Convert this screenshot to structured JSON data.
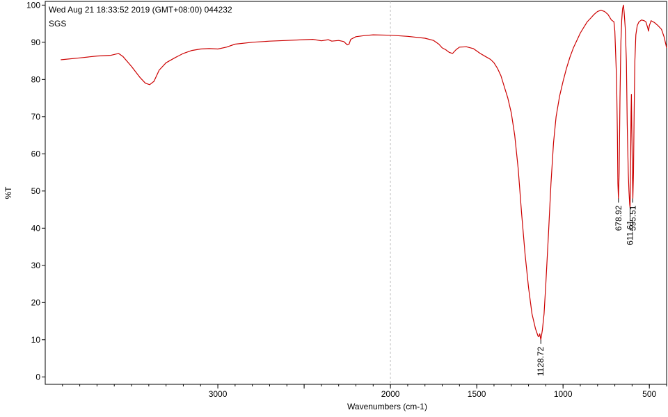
{
  "header": {
    "timestamp_line": "Wed Aug 21 18:33:52 2019 (GMT+08:00)  044232",
    "sample_name": "SGS"
  },
  "colors": {
    "spectrum": "#cc0000",
    "axis": "#000000",
    "cursor": "#c0c0c0",
    "background": "#ffffff"
  },
  "chart_data": {
    "type": "line",
    "title": "",
    "xlabel": "Wavenumbers (cm-1)",
    "ylabel": "%T",
    "xlim": [
      4000,
      400
    ],
    "ylim": [
      -2,
      101
    ],
    "x_reversed": true,
    "grid": false,
    "cursor_x": 2000,
    "x_ticks": [
      3000,
      2500,
      2000,
      1500,
      1000,
      500
    ],
    "x_tick_labels": [
      "3000",
      "2000",
      "1500",
      "1000",
      "500"
    ],
    "x_tick_label_values": [
      3000,
      2000,
      1500,
      1000,
      500
    ],
    "y_ticks": [
      0,
      10,
      20,
      30,
      40,
      50,
      60,
      70,
      80,
      90,
      100
    ],
    "y_tick_labels": [
      "0",
      "10",
      "20",
      "30",
      "40",
      "50",
      "60",
      "70",
      "80",
      "90",
      "100"
    ],
    "series": [
      {
        "points": [
          [
            3910,
            85.3
          ],
          [
            3800,
            85.8
          ],
          [
            3700,
            86.3
          ],
          [
            3620,
            86.5
          ],
          [
            3575,
            87.0
          ],
          [
            3550,
            86.2
          ],
          [
            3500,
            83.5
          ],
          [
            3450,
            80.5
          ],
          [
            3420,
            79.0
          ],
          [
            3395,
            78.6
          ],
          [
            3370,
            79.5
          ],
          [
            3340,
            82.5
          ],
          [
            3300,
            84.5
          ],
          [
            3250,
            85.8
          ],
          [
            3200,
            87.0
          ],
          [
            3150,
            87.8
          ],
          [
            3100,
            88.2
          ],
          [
            3050,
            88.3
          ],
          [
            3000,
            88.2
          ],
          [
            2950,
            88.7
          ],
          [
            2900,
            89.5
          ],
          [
            2800,
            90.0
          ],
          [
            2700,
            90.3
          ],
          [
            2600,
            90.5
          ],
          [
            2500,
            90.7
          ],
          [
            2450,
            90.8
          ],
          [
            2400,
            90.4
          ],
          [
            2360,
            90.7
          ],
          [
            2340,
            90.3
          ],
          [
            2300,
            90.5
          ],
          [
            2270,
            90.2
          ],
          [
            2250,
            89.3
          ],
          [
            2240,
            89.5
          ],
          [
            2230,
            90.8
          ],
          [
            2200,
            91.5
          ],
          [
            2150,
            91.8
          ],
          [
            2100,
            92.0
          ],
          [
            2000,
            91.9
          ],
          [
            1900,
            91.6
          ],
          [
            1800,
            91.1
          ],
          [
            1750,
            90.5
          ],
          [
            1720,
            89.5
          ],
          [
            1700,
            88.5
          ],
          [
            1680,
            88.0
          ],
          [
            1660,
            87.3
          ],
          [
            1640,
            87.0
          ],
          [
            1620,
            88.0
          ],
          [
            1600,
            88.7
          ],
          [
            1560,
            88.8
          ],
          [
            1520,
            88.3
          ],
          [
            1480,
            87.0
          ],
          [
            1450,
            86.2
          ],
          [
            1420,
            85.4
          ],
          [
            1400,
            84.5
          ],
          [
            1380,
            83.0
          ],
          [
            1360,
            81.0
          ],
          [
            1340,
            78.0
          ],
          [
            1320,
            75.0
          ],
          [
            1300,
            71.0
          ],
          [
            1280,
            65.0
          ],
          [
            1260,
            56.0
          ],
          [
            1240,
            44.0
          ],
          [
            1220,
            33.0
          ],
          [
            1200,
            24.0
          ],
          [
            1180,
            17.0
          ],
          [
            1160,
            13.0
          ],
          [
            1145,
            11.0
          ],
          [
            1140,
            10.8
          ],
          [
            1135,
            11.6
          ],
          [
            1128.72,
            10.0
          ],
          [
            1120,
            12.5
          ],
          [
            1110,
            17.0
          ],
          [
            1100,
            25.0
          ],
          [
            1085,
            38.0
          ],
          [
            1070,
            52.0
          ],
          [
            1055,
            63.0
          ],
          [
            1040,
            70.0
          ],
          [
            1020,
            75.5
          ],
          [
            1000,
            79.5
          ],
          [
            980,
            83.0
          ],
          [
            960,
            86.0
          ],
          [
            940,
            88.5
          ],
          [
            920,
            90.5
          ],
          [
            900,
            92.5
          ],
          [
            880,
            94.0
          ],
          [
            860,
            95.5
          ],
          [
            840,
            96.5
          ],
          [
            820,
            97.5
          ],
          [
            800,
            98.3
          ],
          [
            780,
            98.6
          ],
          [
            760,
            98.3
          ],
          [
            740,
            97.5
          ],
          [
            720,
            96.0
          ],
          [
            705,
            95.5
          ],
          [
            700,
            93.0
          ],
          [
            690,
            80.0
          ],
          [
            685,
            65.0
          ],
          [
            682,
            52.0
          ],
          [
            678.92,
            48.0
          ],
          [
            675,
            55.0
          ],
          [
            670,
            75.0
          ],
          [
            665,
            90.0
          ],
          [
            660,
            96.0
          ],
          [
            655,
            99.0
          ],
          [
            650,
            100.0
          ],
          [
            646,
            98.0
          ],
          [
            640,
            94.0
          ],
          [
            633,
            85.0
          ],
          [
            628,
            68.0
          ],
          [
            622,
            55.0
          ],
          [
            618,
            50.0
          ],
          [
            614,
            46.5
          ],
          [
            611.61,
            45.5
          ],
          [
            609,
            58.0
          ],
          [
            606,
            71.0
          ],
          [
            604,
            76.0
          ],
          [
            602,
            68.0
          ],
          [
            599,
            58.0
          ],
          [
            595.51,
            48.0
          ],
          [
            592,
            55.0
          ],
          [
            588,
            72.0
          ],
          [
            584,
            85.0
          ],
          [
            578,
            92.0
          ],
          [
            570,
            94.5
          ],
          [
            560,
            95.5
          ],
          [
            545,
            96.0
          ],
          [
            530,
            95.8
          ],
          [
            520,
            95.5
          ],
          [
            510,
            94.0
          ],
          [
            505,
            93.0
          ],
          [
            500,
            94.5
          ],
          [
            490,
            95.8
          ],
          [
            470,
            95.3
          ],
          [
            450,
            94.5
          ],
          [
            430,
            93.5
          ],
          [
            415,
            91.5
          ],
          [
            405,
            89.5
          ],
          [
            400,
            88.5
          ]
        ]
      }
    ],
    "annotations": [
      {
        "text": "1128.72",
        "x": 1128.72,
        "y": 10.0
      },
      {
        "text": "678.92",
        "x": 678.92,
        "y": 48.0
      },
      {
        "text": "611.61",
        "x": 611.61,
        "y": 45.5
      },
      {
        "text": "595.51",
        "x": 595.51,
        "y": 48.0
      }
    ]
  }
}
